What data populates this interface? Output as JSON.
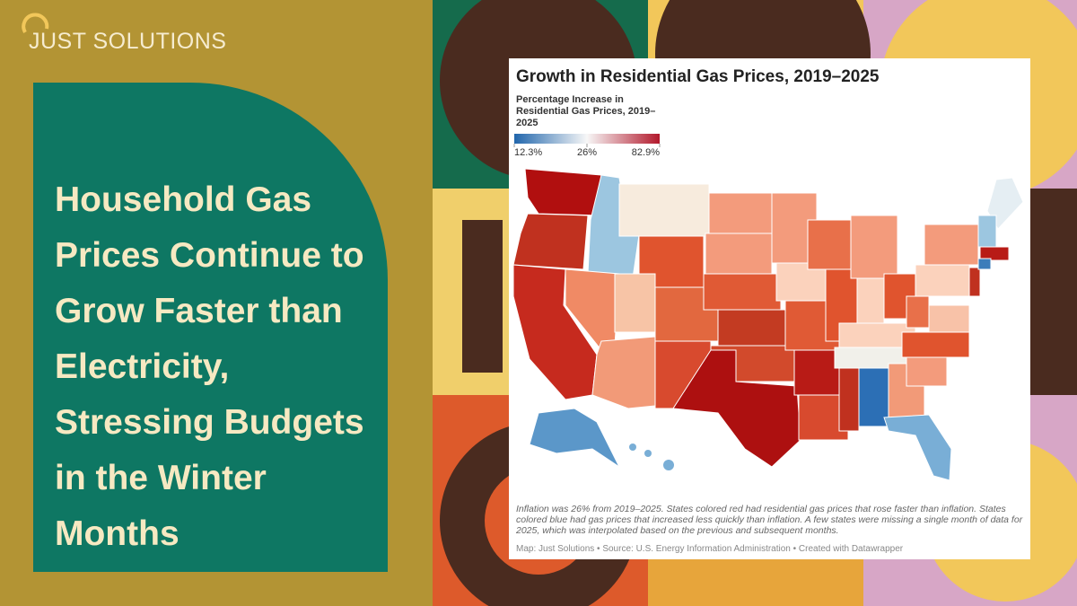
{
  "brand": "JUST SOLUTIONS",
  "headline": "Household Gas Prices Continue to Grow Faster than Electricity, Stressing Budgets in the Winter Months",
  "chart_data": {
    "type": "choropleth",
    "title": "Growth in Residential Gas Prices, 2019–2025",
    "legend_title": "Percentage Increase in Residential Gas Prices, 2019–2025",
    "legend_ticks": [
      {
        "value": 12.3,
        "label": "12.3%"
      },
      {
        "value": 26,
        "label": "26%"
      },
      {
        "value": 82.9,
        "label": "82.9%"
      }
    ],
    "colors": [
      "#2166ac",
      "#f7f7f7",
      "#b2182b"
    ],
    "note": "Inflation was 26% from 2019–2025. States colored red had residential gas prices that rose faster than inflation. States colored blue had gas prices that increased less quickly than inflation. A few states were missing a single month of data for 2025, which was interpolated based on the previous and subsequent months.",
    "credit": "Map: Just Solutions • Source: U.S. Energy Information Administration • Created with Datawrapper"
  }
}
